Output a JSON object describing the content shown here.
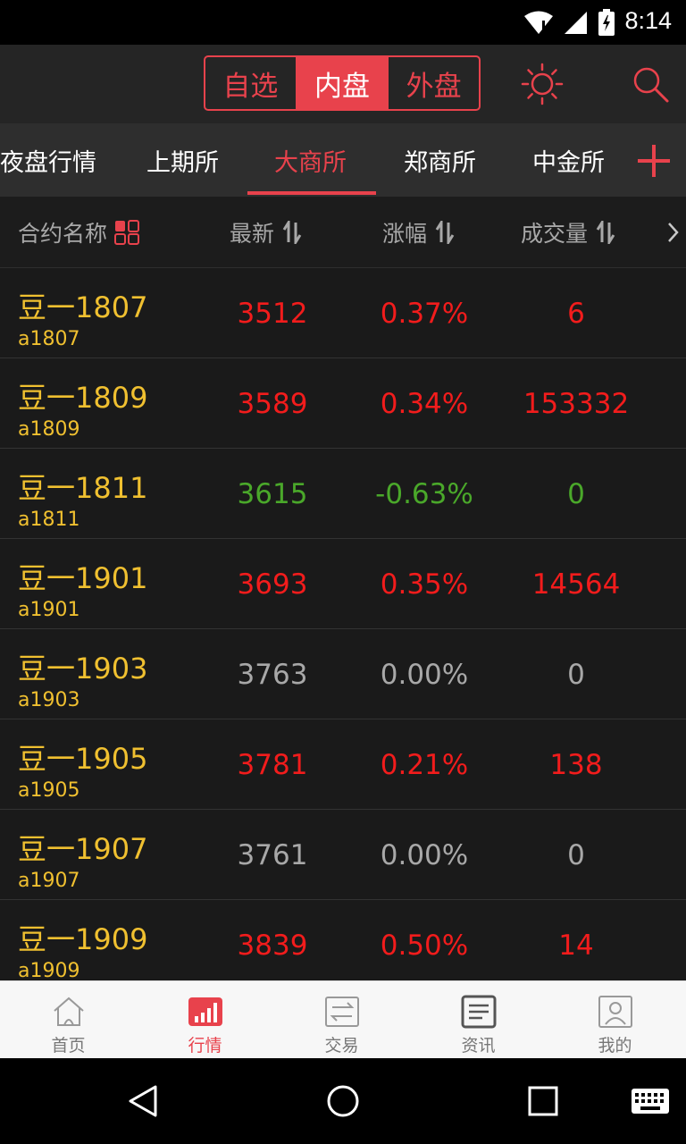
{
  "status_bar": {
    "time": "8:14"
  },
  "top_bar": {
    "segments": [
      "自选",
      "内盘",
      "外盘"
    ],
    "active_segment": 1
  },
  "exchange_tabs": {
    "items": [
      "夜盘行情",
      "上期所",
      "大商所",
      "郑商所",
      "中金所"
    ],
    "active_index": 2
  },
  "table_header": {
    "name_col": "合约名称",
    "price_col": "最新",
    "change_col": "涨幅",
    "volume_col": "成交量"
  },
  "rows": [
    {
      "name": "豆一1807",
      "code": "a1807",
      "price": "3512",
      "change": "0.37%",
      "volume": "6",
      "trend": "up"
    },
    {
      "name": "豆一1809",
      "code": "a1809",
      "price": "3589",
      "change": "0.34%",
      "volume": "153332",
      "trend": "up"
    },
    {
      "name": "豆一1811",
      "code": "a1811",
      "price": "3615",
      "change": "-0.63%",
      "volume": "0",
      "trend": "down"
    },
    {
      "name": "豆一1901",
      "code": "a1901",
      "price": "3693",
      "change": "0.35%",
      "volume": "14564",
      "trend": "up"
    },
    {
      "name": "豆一1903",
      "code": "a1903",
      "price": "3763",
      "change": "0.00%",
      "volume": "0",
      "trend": "flat"
    },
    {
      "name": "豆一1905",
      "code": "a1905",
      "price": "3781",
      "change": "0.21%",
      "volume": "138",
      "trend": "up"
    },
    {
      "name": "豆一1907",
      "code": "a1907",
      "price": "3761",
      "change": "0.00%",
      "volume": "0",
      "trend": "flat"
    },
    {
      "name": "豆一1909",
      "code": "a1909",
      "price": "3839",
      "change": "0.50%",
      "volume": "14",
      "trend": "up"
    }
  ],
  "bottom_nav": {
    "items": [
      {
        "label": "首页",
        "icon": "home-icon"
      },
      {
        "label": "行情",
        "icon": "market-icon"
      },
      {
        "label": "交易",
        "icon": "trade-icon"
      },
      {
        "label": "资讯",
        "icon": "news-icon"
      },
      {
        "label": "我的",
        "icon": "profile-icon"
      }
    ],
    "active_index": 1
  },
  "colors": {
    "accent": "#e8424c",
    "up": "#f21c1c",
    "down": "#4aa82a",
    "flat": "#a8a8a8",
    "contract_name": "#f0c030"
  }
}
